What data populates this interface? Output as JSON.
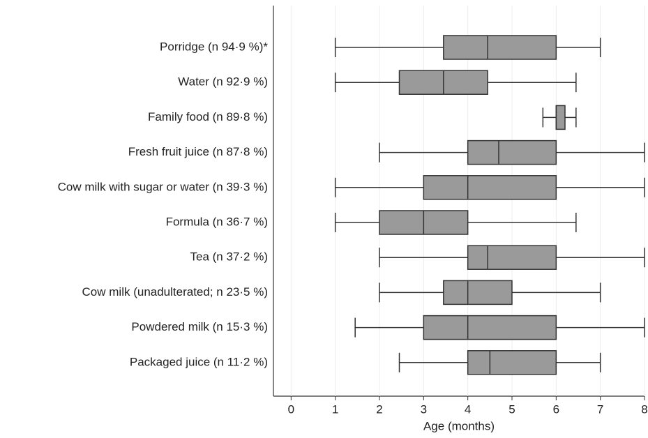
{
  "chart_data": {
    "type": "boxplot",
    "orientation": "horizontal",
    "xlabel": "Age (months)",
    "categories": [
      "Porridge (n 94·9 %)*",
      "Water (n 92·9 %)",
      "Family food (n 89·8 %)",
      "Fresh fruit juice (n 87·8 %)",
      "Cow milk with sugar or water (n 39·3 %)",
      "Formula (n 36·7 %)",
      "Tea (n 37·2 %)",
      "Cow milk (unadulterated; n 23·5 %)",
      "Powdered milk (n 15·3 %)",
      "Packaged juice (n 11·2 %)"
    ],
    "whislo": [
      1,
      1,
      5.7,
      2,
      1,
      1,
      2,
      2,
      1.45,
      2.45
    ],
    "q1": [
      3.45,
      2.45,
      6,
      4,
      3,
      2,
      4,
      3.45,
      3,
      4
    ],
    "med": [
      4.45,
      3.45,
      6,
      4.7,
      4,
      3,
      4.45,
      4,
      4,
      4.5
    ],
    "q3": [
      6,
      4.45,
      6.2,
      6,
      6,
      4,
      6,
      5,
      6,
      6
    ],
    "whishi": [
      7,
      6.45,
      6.45,
      8,
      8,
      6.45,
      8,
      7,
      8,
      7
    ],
    "color": "#9a9a9a",
    "xlim": [
      -0.4,
      8
    ],
    "xticks": [
      0,
      1,
      2,
      3,
      4,
      5,
      6,
      7,
      8
    ],
    "grid": true
  }
}
